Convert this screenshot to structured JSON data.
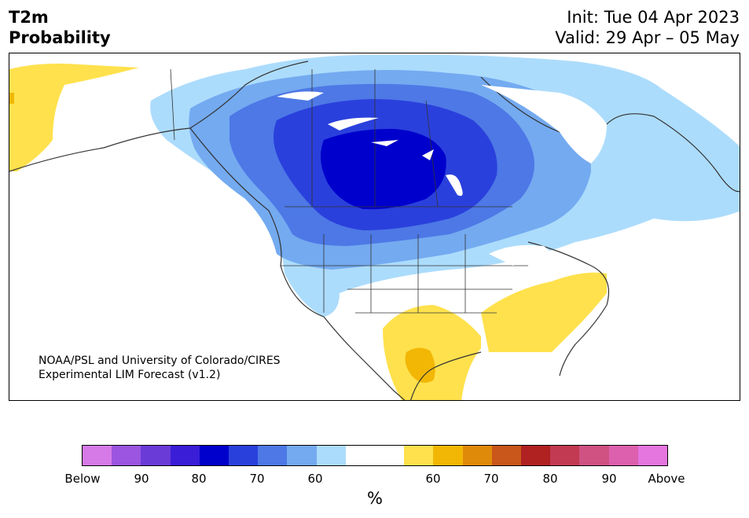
{
  "title": {
    "line1": "T2m",
    "line2": "Probability"
  },
  "info": {
    "init": "Init: Tue 04 Apr 2023",
    "valid": "Valid: 29 Apr – 05 May"
  },
  "credit": {
    "line1": "NOAA/PSL and University of Colorado/CIRES",
    "line2": "Experimental LIM Forecast (v1.2)"
  },
  "colorbar": {
    "unit": "%",
    "colors": [
      "#d67ae8",
      "#9b55e0",
      "#6b3bd8",
      "#3a1dd6",
      "#0000cc",
      "#2a40dc",
      "#4d78e6",
      "#74aaf0",
      "#acdcfc",
      "#ffffff",
      "#ffffff",
      "#ffe14d",
      "#f2b705",
      "#e08a0a",
      "#c9561a",
      "#b02121",
      "#c23a52",
      "#cf5283",
      "#dc60ae",
      "#e575df"
    ],
    "tick_labels": [
      "Below",
      "90",
      "80",
      "70",
      "60",
      "60",
      "70",
      "80",
      "90",
      "Above"
    ]
  },
  "map": {
    "regions": [
      {
        "name": "cold-60",
        "color": "#acdcfc"
      },
      {
        "name": "cold-70",
        "color": "#74aaf0"
      },
      {
        "name": "cold-80",
        "color": "#4d78e6"
      },
      {
        "name": "cold-90",
        "color": "#2a40dc"
      },
      {
        "name": "cold-core",
        "color": "#0000cc"
      },
      {
        "name": "warm-60",
        "color": "#ffe14d"
      },
      {
        "name": "warm-70",
        "color": "#f2b705"
      }
    ]
  }
}
